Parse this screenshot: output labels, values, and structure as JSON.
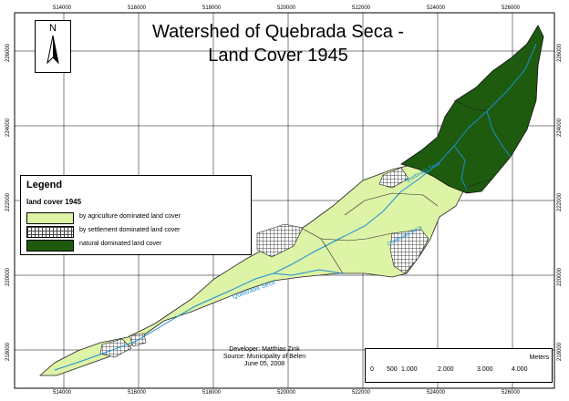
{
  "map": {
    "title_line1": "Watershed of Quebrada Seca -",
    "title_line2": "Land Cover 1945",
    "x_ticks_top": [
      "514000",
      "516000",
      "518000",
      "520000",
      "522000",
      "524000",
      "526000"
    ],
    "x_ticks_bottom": [
      "514000",
      "516000",
      "518000",
      "520000",
      "522000",
      "524000",
      "526000"
    ],
    "y_ticks_left": [
      "226000",
      "224000",
      "222000",
      "220000",
      "218000"
    ],
    "y_ticks_right": [
      "226000",
      "224000",
      "222000",
      "220000",
      "218000"
    ],
    "river_label_1": "Quebrada Seca",
    "river_label_2": "Quebrada Seca",
    "colors": {
      "agriculture": "#ddf3a6",
      "natural": "#1e5b0e",
      "settlement_hatch": "#555555",
      "river": "#1a8fd4",
      "grid": "#000000"
    }
  },
  "legend": {
    "title": "Legend",
    "subtitle": "land cover 1945",
    "items": [
      {
        "label": "by agriculture dominated land cover",
        "kind": "agriculture"
      },
      {
        "label": "by settlement dominated land cover",
        "kind": "settlement"
      },
      {
        "label": "natural dominated land cover",
        "kind": "natural"
      }
    ]
  },
  "north_arrow": {
    "letter": "N",
    "icon": "north-arrow-icon"
  },
  "credits": {
    "line1": "Developer: Matthias Zink",
    "line2": "Source: Municipality of Belen",
    "line3": "June 05, 2008"
  },
  "scale_bar": {
    "unit": "Meters",
    "labels": [
      "0",
      "500",
      "1.000",
      "2.000",
      "3.000",
      "4.000"
    ]
  }
}
